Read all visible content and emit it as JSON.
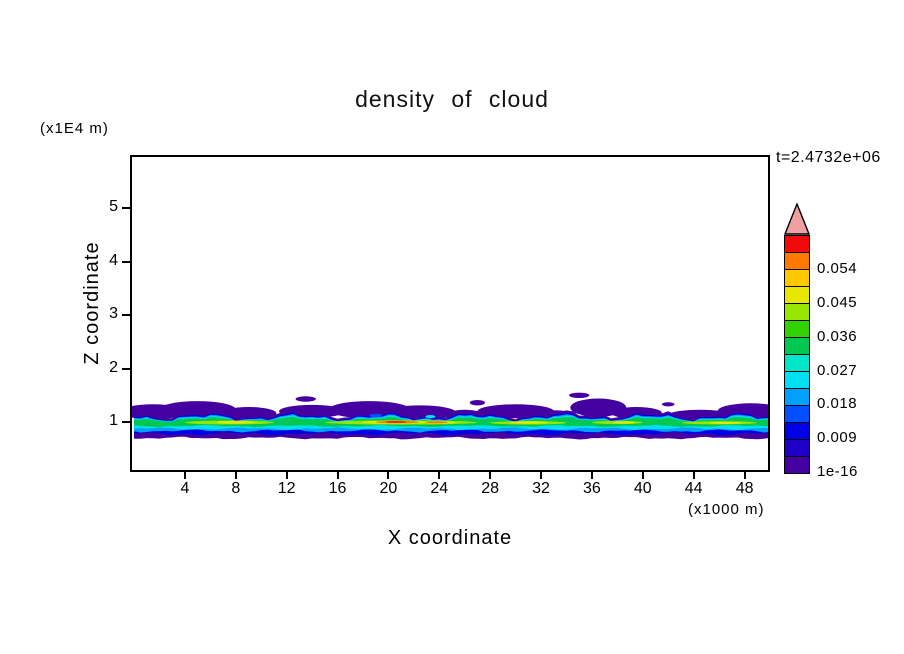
{
  "page": {
    "background": "#ffffff"
  },
  "chart_data": {
    "type": "heatmap",
    "title": "density of cloud",
    "xlabel": "X coordinate",
    "ylabel": "Z coordinate",
    "x_unit_label": "(x1000 m)",
    "y_unit_label": "(x1E4 m)",
    "timestamp_label": "t=2.4732e+06",
    "xlim": [
      0,
      50
    ],
    "ylim": [
      0,
      6
    ],
    "grid": false,
    "x_ticks": [
      4,
      8,
      12,
      16,
      20,
      24,
      28,
      32,
      36,
      40,
      44,
      48
    ],
    "y_ticks": [
      1,
      2,
      3,
      4,
      5
    ],
    "colorbar": {
      "position": "right",
      "labels_top_to_bottom": [
        "0.054",
        "0.045",
        "0.036",
        "0.027",
        "0.018",
        "0.009",
        "1e-16"
      ],
      "min_value": "1e-16",
      "step_per_segment": 0.0045,
      "colors_bottom_to_top": [
        "#4400a0",
        "#1e00c8",
        "#0000e6",
        "#0050ff",
        "#00a0ff",
        "#00e0f0",
        "#00e6c8",
        "#00c850",
        "#32d200",
        "#96e600",
        "#e6e600",
        "#ffc800",
        "#ff7800",
        "#f00a0a"
      ],
      "over_arrow_color": "#f0a0a0"
    },
    "field": {
      "description": "Thin horizontal cloud layer spanning the full x range, centered near z=1 (x1E4 m); density peaks ~0.055 around x=20.6, decreasing outward through orange/yellow/green/cyan/blue to violet; detached low-density violet puffs above the layer up to z~1.5.",
      "band_z_range": [
        0.7,
        1.5
      ],
      "max_value_location": {
        "x": 20.6,
        "z": 1.0
      },
      "layers": [
        {
          "c": 0,
          "zb": 0.7,
          "zt": 1.14,
          "at": 0.05,
          "ab": 0.015,
          "st": 1,
          "sb": 11
        },
        {
          "c": 2,
          "zb": 0.78,
          "zt": 1.1,
          "at": 0.045,
          "ab": 0.02,
          "st": 1,
          "sb": 12
        },
        {
          "c": 4,
          "zb": 0.835,
          "zt": 1.08,
          "at": 0.04,
          "ab": 0.018,
          "st": 1,
          "sb": 13
        },
        {
          "c": 5,
          "zb": 0.875,
          "zt": 1.065,
          "at": 0.035,
          "ab": 0.015,
          "st": 1,
          "sb": 14
        },
        {
          "c": 7,
          "zb": 0.925,
          "zt": 1.05,
          "at": 0.03,
          "ab": 0.012,
          "st": 1,
          "sb": 15
        }
      ],
      "upper_blobs": [
        {
          "c": 0,
          "x": 1.5,
          "w": 2.6,
          "z": 1.19,
          "h": 0.14
        },
        {
          "c": 0,
          "x": 5.0,
          "w": 3.0,
          "z": 1.23,
          "h": 0.16
        },
        {
          "c": 0,
          "x": 9.0,
          "w": 2.2,
          "z": 1.16,
          "h": 0.12
        },
        {
          "c": 0,
          "x": 14.0,
          "w": 2.6,
          "z": 1.2,
          "h": 0.12
        },
        {
          "c": 0,
          "x": 18.5,
          "w": 3.2,
          "z": 1.23,
          "h": 0.16
        },
        {
          "c": 0,
          "x": 22.5,
          "w": 2.8,
          "z": 1.18,
          "h": 0.13
        },
        {
          "c": 0,
          "x": 26.0,
          "w": 1.4,
          "z": 1.14,
          "h": 0.09
        },
        {
          "c": 0,
          "x": 30.0,
          "w": 3.0,
          "z": 1.2,
          "h": 0.13
        },
        {
          "c": 0,
          "x": 33.0,
          "w": 1.4,
          "z": 1.14,
          "h": 0.08
        },
        {
          "c": 0,
          "x": 36.5,
          "w": 2.2,
          "z": 1.27,
          "h": 0.17
        },
        {
          "c": 0,
          "x": 39.5,
          "w": 2.0,
          "z": 1.17,
          "h": 0.11
        },
        {
          "c": 0,
          "x": 44.5,
          "w": 2.4,
          "z": 1.14,
          "h": 0.09
        },
        {
          "c": 0,
          "x": 48.5,
          "w": 2.6,
          "z": 1.21,
          "h": 0.14
        },
        {
          "c": 0,
          "x": 13.5,
          "w": 0.8,
          "z": 1.43,
          "h": 0.05
        },
        {
          "c": 0,
          "x": 27.0,
          "w": 0.6,
          "z": 1.36,
          "h": 0.05
        },
        {
          "c": 0,
          "x": 35.0,
          "w": 0.8,
          "z": 1.5,
          "h": 0.05
        },
        {
          "c": 0,
          "x": 42.0,
          "w": 0.5,
          "z": 1.33,
          "h": 0.04
        }
      ],
      "spots": [
        {
          "c": 9,
          "x": 7.5,
          "w": 3.5,
          "z": 0.99,
          "h": 0.035
        },
        {
          "c": 9,
          "x": 21.0,
          "w": 6.0,
          "z": 0.99,
          "h": 0.04
        },
        {
          "c": 9,
          "x": 31.0,
          "w": 3.0,
          "z": 0.985,
          "h": 0.032
        },
        {
          "c": 9,
          "x": 38.0,
          "w": 2.0,
          "z": 0.99,
          "h": 0.03
        },
        {
          "c": 9,
          "x": 46.0,
          "w": 3.0,
          "z": 0.985,
          "h": 0.03
        },
        {
          "c": 10,
          "x": 8.0,
          "w": 1.5,
          "z": 0.995,
          "h": 0.027
        },
        {
          "c": 10,
          "x": 20.5,
          "w": 2.6,
          "z": 0.995,
          "h": 0.03
        },
        {
          "c": 10,
          "x": 24.0,
          "w": 1.2,
          "z": 0.99,
          "h": 0.025
        },
        {
          "c": 10,
          "x": 31.0,
          "w": 1.5,
          "z": 0.99,
          "h": 0.024
        },
        {
          "c": 10,
          "x": 38.5,
          "w": 0.9,
          "z": 0.99,
          "h": 0.02
        },
        {
          "c": 10,
          "x": 46.5,
          "w": 1.3,
          "z": 0.985,
          "h": 0.022
        },
        {
          "c": 12,
          "x": 20.7,
          "w": 1.7,
          "z": 0.998,
          "h": 0.022
        },
        {
          "c": 12,
          "x": 23.8,
          "w": 0.9,
          "z": 0.995,
          "h": 0.018
        },
        {
          "c": 13,
          "x": 20.6,
          "w": 0.8,
          "z": 1.0,
          "h": 0.015
        },
        {
          "c": 3,
          "x": 19.0,
          "w": 0.5,
          "z": 1.12,
          "h": 0.035
        },
        {
          "c": 5,
          "x": 23.3,
          "w": 0.4,
          "z": 1.1,
          "h": 0.03
        }
      ]
    }
  }
}
